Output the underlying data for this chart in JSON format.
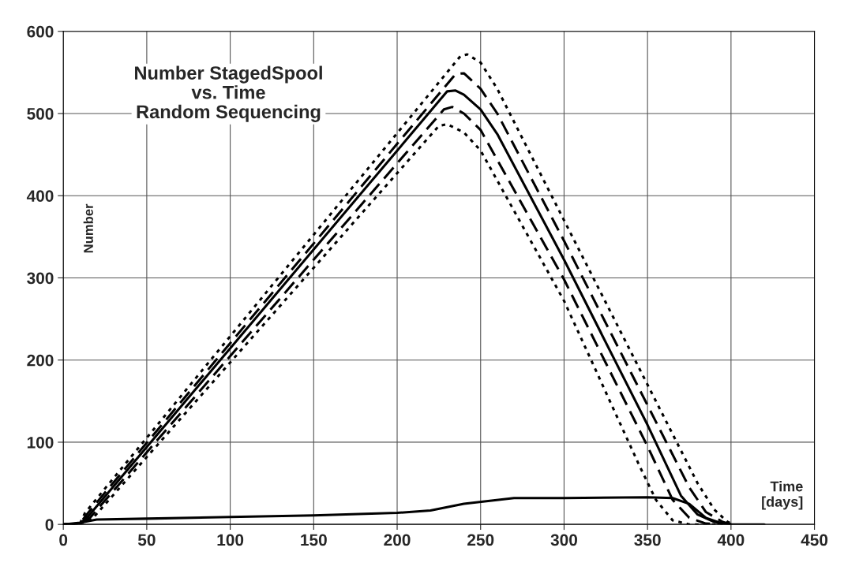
{
  "chart_data": {
    "type": "line",
    "title": "Number StagedSpool\nvs. Time\nRandom Sequencing",
    "xlabel": "Time\n[days]",
    "ylabel": "Number",
    "xlim": [
      0,
      450
    ],
    "xticks": [
      0,
      50,
      100,
      150,
      200,
      250,
      300,
      350,
      400,
      450
    ],
    "ylim": [
      0,
      600
    ],
    "yticks": [
      0,
      100,
      200,
      300,
      400,
      500,
      600
    ],
    "grid": true,
    "legend": false,
    "marker": "none",
    "series": [
      {
        "color": "#000000",
        "line_style": "dotted",
        "x": [
          0,
          10,
          13,
          238,
          242,
          250,
          260,
          300,
          350,
          380,
          390,
          398,
          402
        ],
        "values": [
          0,
          1,
          14,
          570,
          572,
          562,
          530,
          370,
          170,
          50,
          18,
          3,
          0
        ]
      },
      {
        "color": "#000000",
        "line_style": "dashed",
        "x": [
          0,
          10,
          14,
          235,
          240,
          250,
          260,
          300,
          350,
          375,
          385,
          395,
          400
        ],
        "values": [
          0,
          1,
          12,
          548,
          549,
          530,
          500,
          345,
          145,
          45,
          15,
          3,
          0
        ]
      },
      {
        "color": "#000000",
        "line_style": "solid",
        "x": [
          0,
          10,
          15,
          230,
          235,
          240,
          250,
          260,
          300,
          350,
          370,
          380,
          390,
          400,
          420
        ],
        "values": [
          0,
          1,
          10,
          527,
          528,
          523,
          505,
          475,
          322,
          121,
          35,
          12,
          3,
          0,
          0
        ]
      },
      {
        "color": "#000000",
        "line_style": "dashed",
        "x": [
          0,
          10,
          16,
          228,
          233,
          240,
          250,
          300,
          350,
          365,
          375,
          385,
          395
        ],
        "values": [
          0,
          1,
          8,
          505,
          508,
          500,
          480,
          298,
          95,
          30,
          8,
          1,
          0
        ]
      },
      {
        "color": "#000000",
        "line_style": "dotted",
        "x": [
          0,
          10,
          17,
          225,
          230,
          240,
          250,
          300,
          345,
          355,
          365,
          375,
          395
        ],
        "values": [
          0,
          1,
          6,
          485,
          487,
          477,
          455,
          272,
          72,
          30,
          5,
          0,
          0
        ]
      },
      {
        "color": "#000000",
        "line_style": "solid",
        "x": [
          0,
          10,
          20,
          50,
          100,
          150,
          200,
          220,
          240,
          270,
          300,
          350,
          365,
          375,
          385,
          395,
          400
        ],
        "values": [
          0,
          2,
          6,
          7,
          9,
          11,
          14,
          17,
          25,
          32,
          32,
          33,
          32,
          25,
          8,
          1,
          0
        ]
      }
    ]
  }
}
